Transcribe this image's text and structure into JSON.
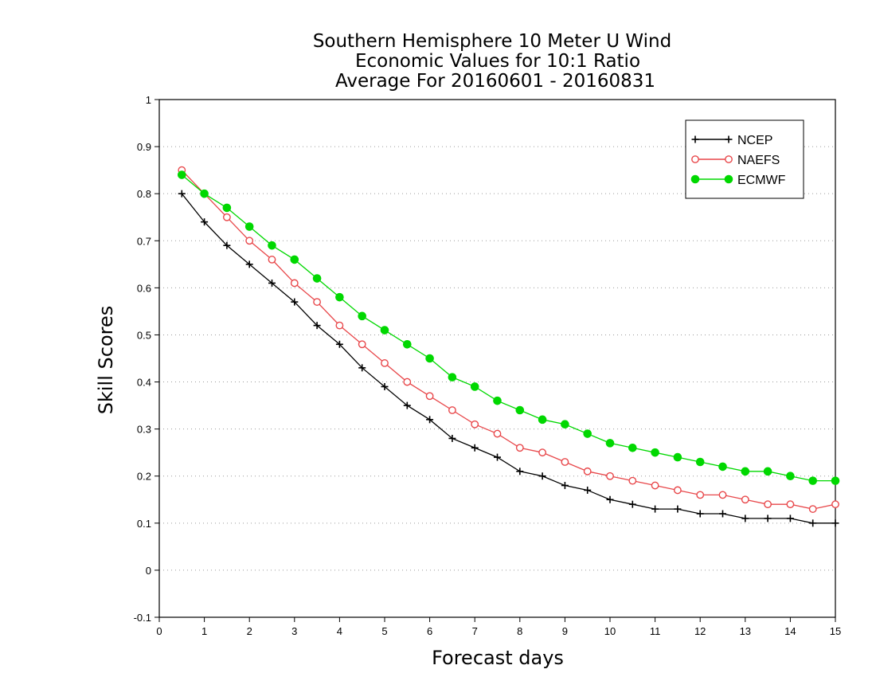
{
  "chart_data": {
    "type": "line",
    "title": [
      "Southern Hemisphere 10 Meter U Wind",
      "Economic Values for 10:1 Ratio",
      "Average For 20160601 - 20160831"
    ],
    "xlabel": "Forecast days",
    "ylabel": "Skill Scores",
    "xlim": [
      0,
      15
    ],
    "ylim": [
      -0.1,
      1
    ],
    "xticks": [
      0,
      1,
      2,
      3,
      4,
      5,
      6,
      7,
      8,
      9,
      10,
      11,
      12,
      13,
      14,
      15
    ],
    "yticks": [
      -0.1,
      0,
      0.1,
      0.2,
      0.3,
      0.4,
      0.5,
      0.6,
      0.7,
      0.8,
      0.9,
      1
    ],
    "ytick_labels": [
      "-0.1",
      "0",
      "0.1",
      "0.2",
      "0.3",
      "0.4",
      "0.5",
      "0.6",
      "0.7",
      "0.8",
      "0.9",
      "1"
    ],
    "grid": true,
    "legend_position": "top-right",
    "x": [
      0.5,
      1,
      1.5,
      2,
      2.5,
      3,
      3.5,
      4,
      4.5,
      5,
      5.5,
      6,
      6.5,
      7,
      7.5,
      8,
      8.5,
      9,
      9.5,
      10,
      10.5,
      11,
      11.5,
      12,
      12.5,
      13,
      13.5,
      14,
      14.5,
      15
    ],
    "series": [
      {
        "name": "NCEP",
        "color": "#000000",
        "marker": "plus",
        "values": [
          0.8,
          0.74,
          0.69,
          0.65,
          0.61,
          0.57,
          0.52,
          0.48,
          0.43,
          0.39,
          0.35,
          0.32,
          0.28,
          0.26,
          0.24,
          0.21,
          0.2,
          0.18,
          0.17,
          0.15,
          0.14,
          0.13,
          0.13,
          0.12,
          0.12,
          0.11,
          0.11,
          0.11,
          0.1,
          0.1
        ]
      },
      {
        "name": "NAEFS",
        "color": "#e8474a",
        "marker": "open-circle",
        "values": [
          0.85,
          0.8,
          0.75,
          0.7,
          0.66,
          0.61,
          0.57,
          0.52,
          0.48,
          0.44,
          0.4,
          0.37,
          0.34,
          0.31,
          0.29,
          0.26,
          0.25,
          0.23,
          0.21,
          0.2,
          0.19,
          0.18,
          0.17,
          0.16,
          0.16,
          0.15,
          0.14,
          0.14,
          0.13,
          0.14
        ]
      },
      {
        "name": "ECMWF",
        "color": "#00d800",
        "marker": "filled-circle",
        "values": [
          0.84,
          0.8,
          0.77,
          0.73,
          0.69,
          0.66,
          0.62,
          0.58,
          0.54,
          0.51,
          0.48,
          0.45,
          0.41,
          0.39,
          0.36,
          0.34,
          0.32,
          0.31,
          0.29,
          0.27,
          0.26,
          0.25,
          0.24,
          0.23,
          0.22,
          0.21,
          0.21,
          0.2,
          0.19,
          0.19
        ]
      }
    ]
  }
}
